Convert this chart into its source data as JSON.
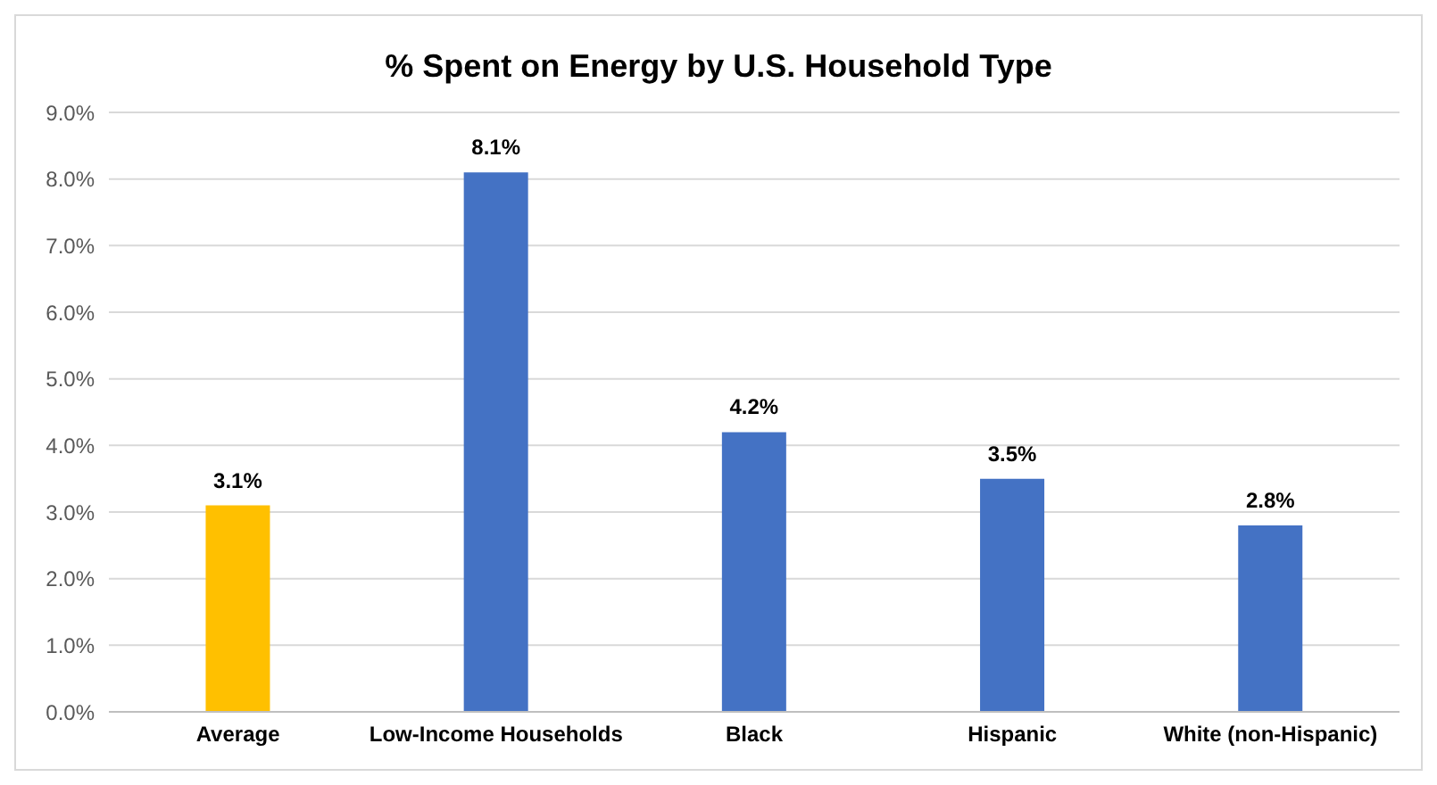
{
  "chart_data": {
    "type": "bar",
    "title": "% Spent on Energy by U.S. Household Type",
    "categories": [
      "Average",
      "Low-Income Households",
      "Black",
      "Hispanic",
      "White (non-Hispanic)"
    ],
    "values": [
      3.1,
      8.1,
      4.2,
      3.5,
      2.8
    ],
    "colors": [
      "#ffc000",
      "#4472c4",
      "#4472c4",
      "#4472c4",
      "#4472c4"
    ],
    "value_labels": [
      "3.1%",
      "8.1%",
      "4.2%",
      "3.5%",
      "2.8%"
    ],
    "ylim": [
      0,
      9
    ],
    "yticks": [
      {
        "value": 0,
        "label": "0.0%"
      },
      {
        "value": 1,
        "label": "1.0%"
      },
      {
        "value": 2,
        "label": "2.0%"
      },
      {
        "value": 3,
        "label": "3.0%"
      },
      {
        "value": 4,
        "label": "4.0%"
      },
      {
        "value": 5,
        "label": "5.0%"
      },
      {
        "value": 6,
        "label": "6.0%"
      },
      {
        "value": 7,
        "label": "7.0%"
      },
      {
        "value": 8,
        "label": "8.0%"
      },
      {
        "value": 9,
        "label": "9.0%"
      }
    ],
    "grid": "y"
  }
}
